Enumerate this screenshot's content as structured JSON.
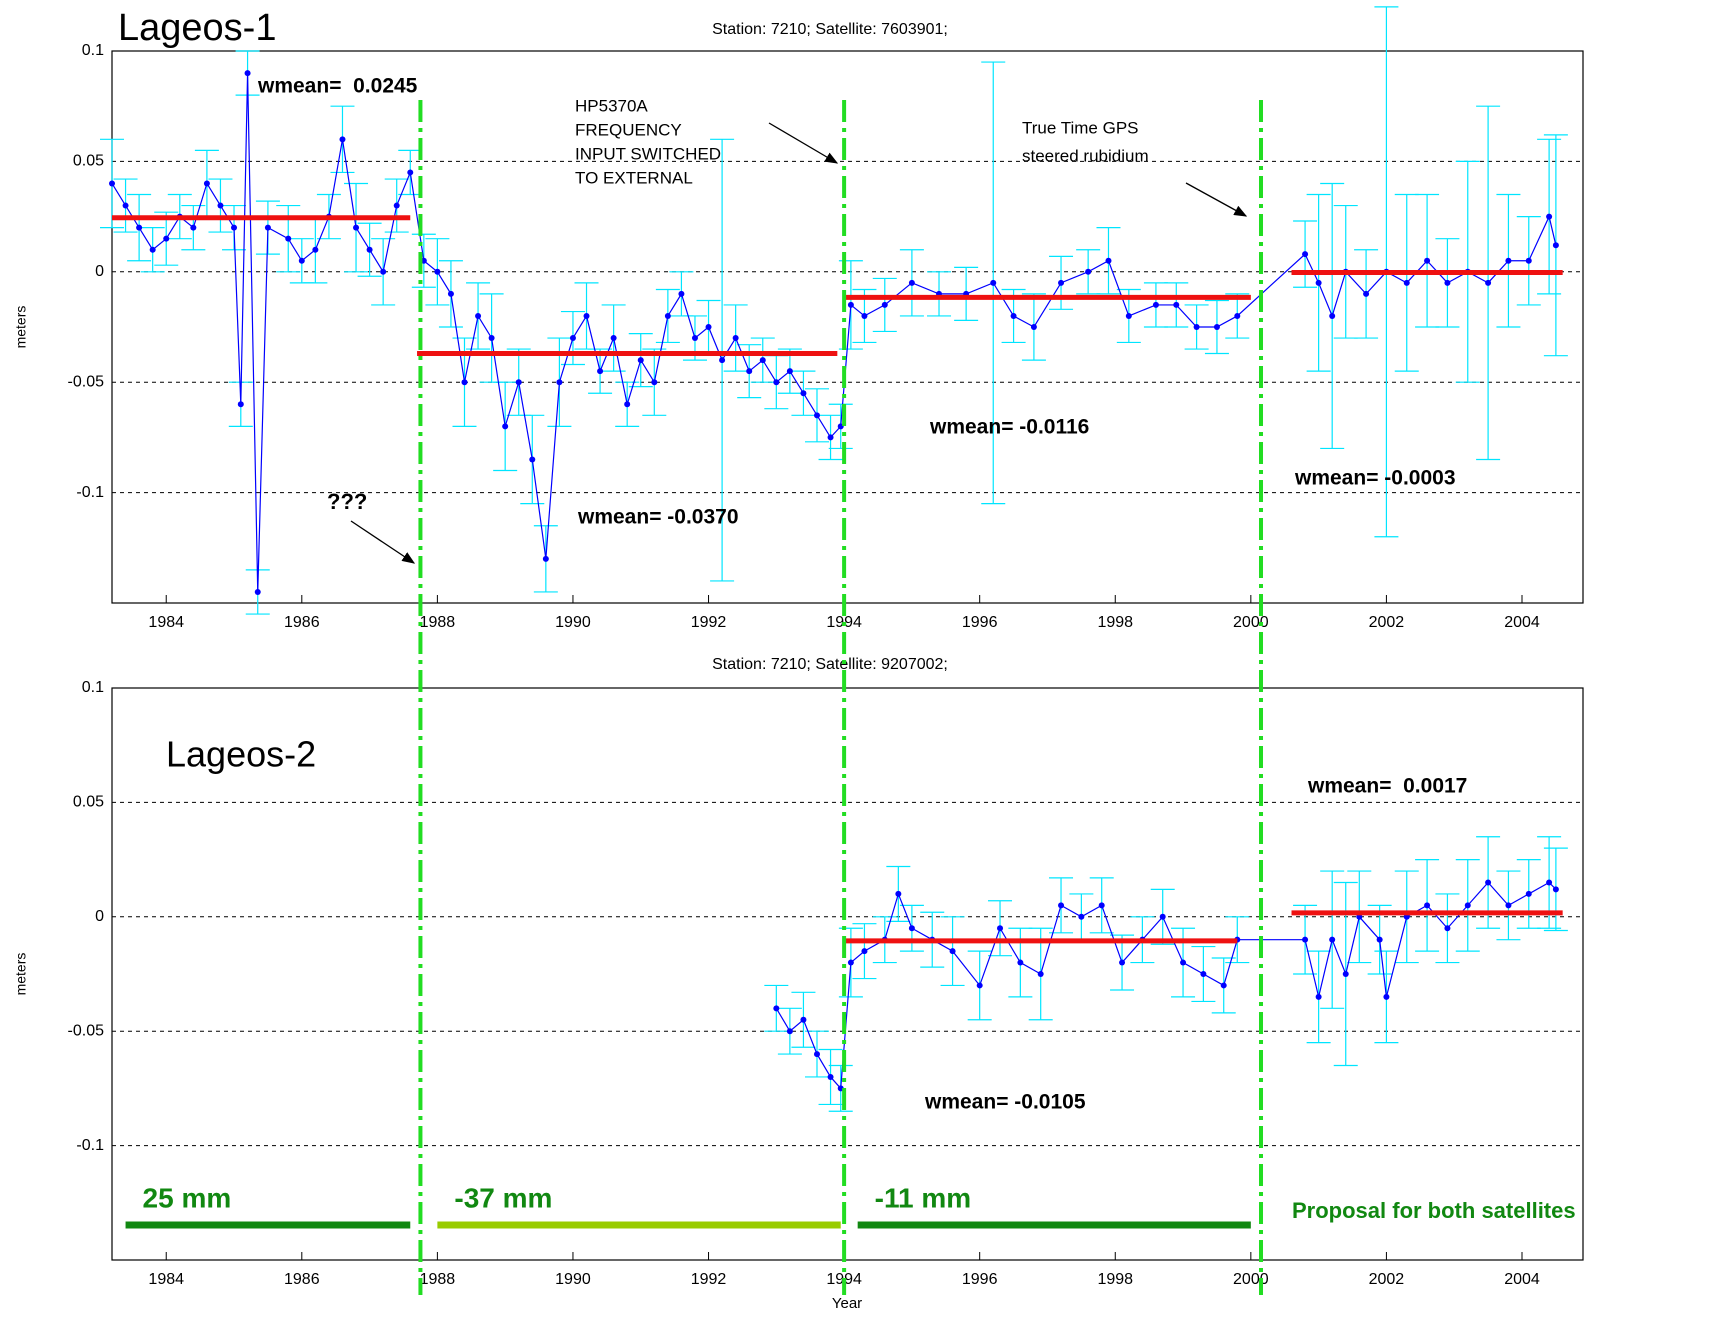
{
  "chart_data": [
    {
      "type": "line",
      "title": "Station: 7210; Satellite: 7603901;",
      "label": "Lageos-1",
      "ylabel": "meters",
      "xlim": [
        1983.2,
        2004.9
      ],
      "ylim": [
        -0.15,
        0.1
      ],
      "xticks": [
        1984,
        1986,
        1988,
        1990,
        1992,
        1994,
        1996,
        1998,
        2000,
        2002,
        2004
      ],
      "yticks": [
        0.1,
        0.05,
        0,
        -0.05,
        -0.1
      ],
      "grid": true,
      "series": [
        {
          "color": "#0000ff",
          "error_color": "#00e5ff",
          "x": [
            1983.2,
            1983.4,
            1983.6,
            1983.8,
            1984.0,
            1984.2,
            1984.4,
            1984.6,
            1984.8,
            1985.0,
            1985.1,
            1985.2,
            1985.35,
            1985.5,
            1985.8,
            1986.0,
            1986.2,
            1986.4,
            1986.6,
            1986.8,
            1987.0,
            1987.2,
            1987.4,
            1987.6,
            1987.8,
            1988.0,
            1988.2,
            1988.4,
            1988.6,
            1988.8,
            1989.0,
            1989.2,
            1989.4,
            1989.6,
            1989.8,
            1990.0,
            1990.2,
            1990.4,
            1990.6,
            1990.8,
            1991.0,
            1991.2,
            1991.4,
            1991.6,
            1991.8,
            1992.0,
            1992.2,
            1992.4,
            1992.6,
            1992.8,
            1993.0,
            1993.2,
            1993.4,
            1993.6,
            1993.8,
            1993.95,
            1994.1,
            1994.3,
            1994.6,
            1995.0,
            1995.4,
            1995.8,
            1996.2,
            1996.5,
            1996.8,
            1997.2,
            1997.6,
            1997.9,
            1998.2,
            1998.6,
            1998.9,
            1999.2,
            1999.5,
            1999.8,
            2000.8,
            2001.0,
            2001.2,
            2001.4,
            2001.7,
            2002.0,
            2002.3,
            2002.6,
            2002.9,
            2003.2,
            2003.5,
            2003.8,
            2004.1,
            2004.4,
            2004.5
          ],
          "values": [
            0.04,
            0.03,
            0.02,
            0.01,
            0.015,
            0.025,
            0.02,
            0.04,
            0.03,
            0.02,
            -0.06,
            0.09,
            -0.145,
            0.02,
            0.015,
            0.005,
            0.01,
            0.025,
            0.06,
            0.02,
            0.01,
            0.0,
            0.03,
            0.045,
            0.005,
            0.0,
            -0.01,
            -0.05,
            -0.02,
            -0.03,
            -0.07,
            -0.05,
            -0.085,
            -0.13,
            -0.05,
            -0.03,
            -0.02,
            -0.045,
            -0.03,
            -0.06,
            -0.04,
            -0.05,
            -0.02,
            -0.01,
            -0.03,
            -0.025,
            -0.04,
            -0.03,
            -0.045,
            -0.04,
            -0.05,
            -0.045,
            -0.055,
            -0.065,
            -0.075,
            -0.07,
            -0.015,
            -0.02,
            -0.015,
            -0.005,
            -0.01,
            -0.01,
            -0.005,
            -0.02,
            -0.025,
            -0.005,
            0.0,
            0.005,
            -0.02,
            -0.015,
            -0.015,
            -0.025,
            -0.025,
            -0.02,
            0.008,
            -0.005,
            -0.02,
            0.0,
            -0.01,
            0.0,
            -0.005,
            0.005,
            -0.005,
            0.0,
            -0.005,
            0.005,
            0.005,
            0.025,
            0.012
          ],
          "errors": [
            0.02,
            0.012,
            0.015,
            0.01,
            0.012,
            0.01,
            0.01,
            0.015,
            0.012,
            0.01,
            0.01,
            0.01,
            0.01,
            0.012,
            0.015,
            0.01,
            0.015,
            0.01,
            0.015,
            0.02,
            0.012,
            0.015,
            0.012,
            0.01,
            0.012,
            0.015,
            0.015,
            0.02,
            0.015,
            0.02,
            0.02,
            0.015,
            0.02,
            0.015,
            0.02,
            0.012,
            0.015,
            0.01,
            0.015,
            0.01,
            0.012,
            0.015,
            0.012,
            0.01,
            0.01,
            0.012,
            0.1,
            0.015,
            0.012,
            0.01,
            0.012,
            0.01,
            0.01,
            0.012,
            0.01,
            0.01,
            0.02,
            0.012,
            0.012,
            0.015,
            0.01,
            0.012,
            0.1,
            0.012,
            0.015,
            0.012,
            0.01,
            0.015,
            0.012,
            0.01,
            0.01,
            0.01,
            0.012,
            0.01,
            0.015,
            0.04,
            0.06,
            0.03,
            0.02,
            0.12,
            0.04,
            0.03,
            0.02,
            0.05,
            0.08,
            0.03,
            0.02,
            0.035,
            0.05
          ]
        }
      ],
      "means": [
        {
          "x": [
            1983.2,
            1987.6
          ],
          "value": 0.0245,
          "label": "wmean=  0.0245",
          "color": "#ee1111"
        },
        {
          "x": [
            1987.7,
            1993.9
          ],
          "value": -0.037,
          "label": "wmean= -0.0370",
          "color": "#ee1111"
        },
        {
          "x": [
            1994.0,
            2000.0
          ],
          "value": -0.0116,
          "label": "wmean= -0.0116",
          "color": "#ee1111"
        },
        {
          "x": [
            2000.6,
            2004.6
          ],
          "value": -0.0003,
          "label": "wmean= -0.0003",
          "color": "#ee1111"
        }
      ],
      "notes": [
        [
          "???"
        ],
        [
          "HP5370A",
          "FREQUENCY",
          "INPUT SWITCHED",
          "TO EXTERNAL"
        ],
        [
          "True Time GPS",
          "steered rubidium"
        ]
      ]
    },
    {
      "type": "line",
      "title": "Station: 7210; Satellite: 9207002;",
      "label": "Lageos-2",
      "ylabel": "meters",
      "xlabel": "Year",
      "xlim": [
        1983.2,
        2004.9
      ],
      "ylim": [
        -0.15,
        0.1
      ],
      "xticks": [
        1984,
        1986,
        1988,
        1990,
        1992,
        1994,
        1996,
        1998,
        2000,
        2002,
        2004
      ],
      "yticks": [
        0.1,
        0.05,
        0,
        -0.05,
        -0.1
      ],
      "grid": true,
      "series": [
        {
          "color": "#0000ff",
          "error_color": "#00e5ff",
          "x": [
            1993.0,
            1993.2,
            1993.4,
            1993.6,
            1993.8,
            1993.95,
            1994.1,
            1994.3,
            1994.6,
            1994.8,
            1995.0,
            1995.3,
            1995.6,
            1996.0,
            1996.3,
            1996.6,
            1996.9,
            1997.2,
            1997.5,
            1997.8,
            1998.1,
            1998.4,
            1998.7,
            1999.0,
            1999.3,
            1999.6,
            1999.8,
            2000.8,
            2001.0,
            2001.2,
            2001.4,
            2001.6,
            2001.9,
            2002.0,
            2002.3,
            2002.6,
            2002.9,
            2003.2,
            2003.5,
            2003.8,
            2004.1,
            2004.4,
            2004.5
          ],
          "values": [
            -0.04,
            -0.05,
            -0.045,
            -0.06,
            -0.07,
            -0.075,
            -0.02,
            -0.015,
            -0.01,
            0.01,
            -0.005,
            -0.01,
            -0.015,
            -0.03,
            -0.005,
            -0.02,
            -0.025,
            0.005,
            0.0,
            0.005,
            -0.02,
            -0.01,
            0.0,
            -0.02,
            -0.025,
            -0.03,
            -0.01,
            -0.01,
            -0.035,
            -0.01,
            -0.025,
            0.0,
            -0.01,
            -0.035,
            0.0,
            0.005,
            -0.005,
            0.005,
            0.015,
            0.005,
            0.01,
            0.015,
            0.012
          ],
          "errors": [
            0.01,
            0.01,
            0.012,
            0.01,
            0.012,
            0.01,
            0.015,
            0.012,
            0.01,
            0.012,
            0.01,
            0.012,
            0.015,
            0.015,
            0.012,
            0.015,
            0.02,
            0.012,
            0.01,
            0.012,
            0.012,
            0.01,
            0.012,
            0.015,
            0.012,
            0.012,
            0.01,
            0.015,
            0.02,
            0.03,
            0.04,
            0.02,
            0.015,
            0.02,
            0.02,
            0.02,
            0.015,
            0.02,
            0.02,
            0.015,
            0.015,
            0.02,
            0.018
          ]
        }
      ],
      "means": [
        {
          "x": [
            1994.0,
            1999.8
          ],
          "value": -0.0105,
          "label": "wmean= -0.0105",
          "color": "#ee1111"
        },
        {
          "x": [
            2000.6,
            2004.6
          ],
          "value": 0.0017,
          "label": "wmean=  0.0017",
          "color": "#ee1111"
        }
      ],
      "notes": []
    }
  ],
  "breaks": {
    "color": "#22dd22",
    "x": [
      1987.75,
      1994.0,
      2000.15
    ]
  },
  "proposal": {
    "title": "Proposal for both satellites",
    "color": "#118811",
    "bars": [
      {
        "label": "25 mm",
        "x": [
          1983.4,
          1987.6
        ],
        "color": "#118811"
      },
      {
        "label": "-37 mm",
        "x": [
          1988.0,
          1993.95
        ],
        "color": "#99cc00"
      },
      {
        "label": "-11 mm",
        "x": [
          1994.2,
          2000.0
        ],
        "color": "#118811"
      }
    ]
  }
}
